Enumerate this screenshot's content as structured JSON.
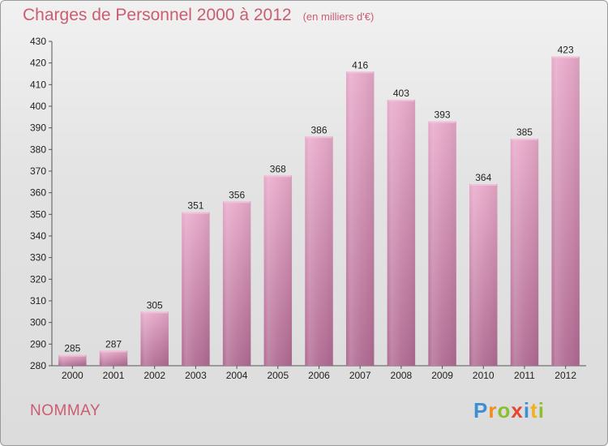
{
  "chart_data": {
    "type": "bar",
    "title": "Charges de Personnel 2000 à 2012",
    "subtitle": "(en milliers d'€)",
    "categories": [
      "2000",
      "2001",
      "2002",
      "2003",
      "2004",
      "2005",
      "2006",
      "2007",
      "2008",
      "2009",
      "2010",
      "2011",
      "2012"
    ],
    "values": [
      285,
      287,
      305,
      351,
      356,
      368,
      386,
      416,
      403,
      393,
      364,
      385,
      423
    ],
    "ylim": [
      280,
      430
    ],
    "yticks": [
      280,
      290,
      300,
      310,
      320,
      330,
      340,
      350,
      360,
      370,
      380,
      390,
      400,
      410,
      420,
      430
    ],
    "grid": false,
    "bar_color": "#d98fb2"
  },
  "footer": {
    "commune": "NOMMAY",
    "logo_letters": [
      "P",
      "r",
      "o",
      "x",
      "i",
      "t",
      "i"
    ],
    "logo_colors": [
      "#3a8fd6",
      "#f28c1e",
      "#8cbf2e",
      "#e8452f",
      "#3a8fd6",
      "#f2b01e",
      "#8cbf2e"
    ]
  }
}
